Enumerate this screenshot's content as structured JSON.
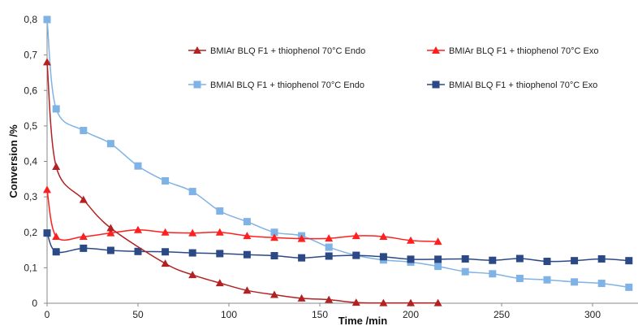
{
  "chart_data": {
    "type": "line",
    "xlabel": "Time /min",
    "ylabel": "Conversion /%",
    "xlim": [
      0,
      325
    ],
    "ylim": [
      0,
      0.8
    ],
    "x_ticks": [
      0,
      50,
      100,
      150,
      200,
      250,
      300
    ],
    "y_ticks": [
      0,
      0.1,
      0.2,
      0.3,
      0.4,
      0.5,
      0.6,
      0.7,
      0.8
    ],
    "x_tick_labels": [
      "0",
      "50",
      "100",
      "150",
      "200",
      "250",
      "300"
    ],
    "y_tick_labels": [
      "0",
      "0,1",
      "0,2",
      "0,3",
      "0,4",
      "0,5",
      "0,6",
      "0,7",
      "0,8"
    ],
    "grid": false,
    "legend": "top-right",
    "series": [
      {
        "name": "BMIAr BLQ F1 + thiophenol 70°C Endo",
        "color": "#b22222",
        "marker": "triangle",
        "x": [
          0,
          5,
          20,
          35,
          65,
          80,
          95,
          110,
          125,
          140,
          155,
          170,
          185,
          200,
          215
        ],
        "y": [
          0.68,
          0.385,
          0.292,
          0.212,
          0.112,
          0.08,
          0.057,
          0.036,
          0.024,
          0.014,
          0.01,
          0.002,
          0.001,
          0.001,
          0.001
        ]
      },
      {
        "name": "BMIAr BLQ F1 + thiophenol 70°C Exo",
        "color": "#ff1f1f",
        "marker": "triangle",
        "x": [
          0,
          5,
          20,
          35,
          50,
          65,
          80,
          95,
          110,
          125,
          140,
          155,
          170,
          185,
          200,
          215
        ],
        "y": [
          0.32,
          0.188,
          0.188,
          0.198,
          0.207,
          0.2,
          0.198,
          0.2,
          0.19,
          0.185,
          0.182,
          0.183,
          0.19,
          0.188,
          0.177,
          0.174
        ]
      },
      {
        "name": "BMIAl BLQ F1 + thiophenol 70°C Endo",
        "color": "#7fb2e5",
        "marker": "square",
        "x": [
          0,
          5,
          20,
          35,
          50,
          65,
          80,
          95,
          110,
          125,
          140,
          155,
          170,
          185,
          200,
          215,
          230,
          245,
          260,
          275,
          290,
          305,
          320
        ],
        "y": [
          0.8,
          0.548,
          0.487,
          0.45,
          0.387,
          0.345,
          0.315,
          0.26,
          0.23,
          0.2,
          0.19,
          0.158,
          0.135,
          0.122,
          0.116,
          0.104,
          0.089,
          0.083,
          0.07,
          0.066,
          0.06,
          0.056,
          0.045
        ]
      },
      {
        "name": "BMIAl BLQ F1 + thiophenol 70°C Exo",
        "color": "#2b4a85",
        "marker": "square",
        "x": [
          0,
          5,
          20,
          35,
          50,
          65,
          80,
          95,
          110,
          125,
          140,
          155,
          170,
          185,
          200,
          215,
          230,
          245,
          260,
          275,
          290,
          305,
          320
        ],
        "y": [
          0.198,
          0.145,
          0.155,
          0.149,
          0.146,
          0.145,
          0.142,
          0.14,
          0.137,
          0.134,
          0.128,
          0.133,
          0.135,
          0.131,
          0.124,
          0.124,
          0.125,
          0.121,
          0.126,
          0.118,
          0.12,
          0.125,
          0.12
        ]
      }
    ]
  }
}
